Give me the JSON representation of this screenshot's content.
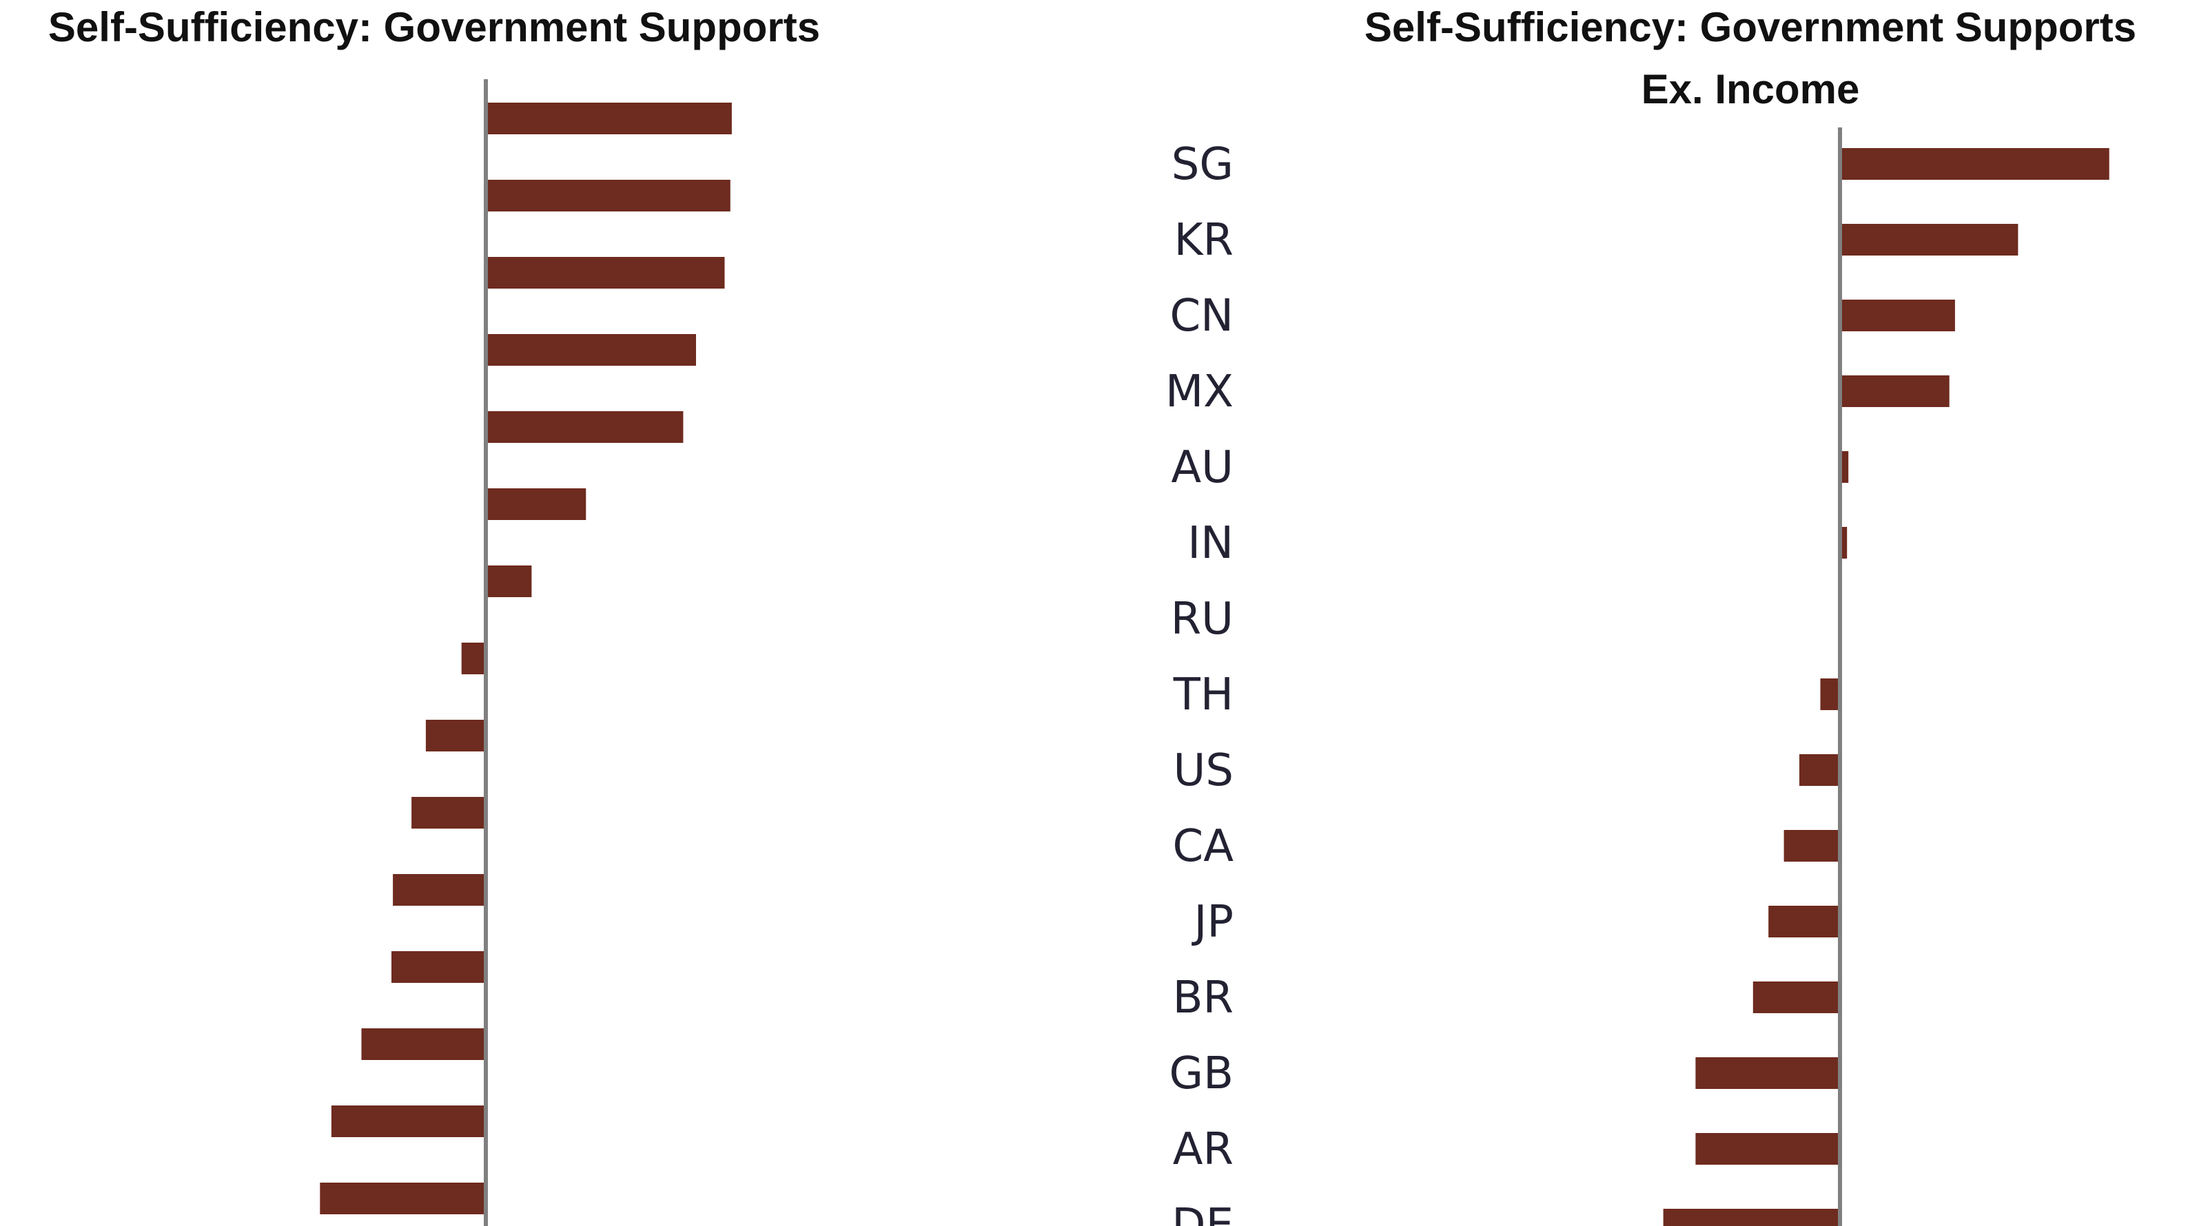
{
  "chart_data": [
    {
      "type": "bar",
      "orientation": "horizontal",
      "title": "Self-Sufficiency: Government Supports",
      "categories": [
        "SG",
        "KR",
        "CN",
        "MX",
        "AU",
        "IN",
        "RU",
        "TH",
        "US",
        "CA",
        "JP",
        "BR",
        "GB",
        "AR",
        "DE"
      ],
      "values": [
        8.6,
        8.55,
        8.35,
        7.35,
        6.9,
        3.5,
        1.6,
        -0.85,
        -2.1,
        -2.6,
        -3.25,
        -3.3,
        -4.35,
        -5.4,
        -5.8
      ],
      "xlim": [
        -6,
        10
      ],
      "grid": false,
      "color": "#6e2b1f",
      "axis_color": "#808080"
    },
    {
      "type": "bar",
      "orientation": "horizontal",
      "title": "Self-Sufficiency: Government Supports",
      "subtitle": "Ex. Income",
      "categories": [
        "SG",
        "KR",
        "CN",
        "MX",
        "AU",
        "IN",
        "RU",
        "TH",
        "US",
        "CA",
        "JP",
        "BR",
        "GB",
        "AR",
        "DE"
      ],
      "values": [
        9.6,
        6.35,
        4.1,
        3.9,
        0.3,
        0.25,
        -0.05,
        -0.7,
        -1.45,
        -2.0,
        -2.55,
        -3.1,
        -5.15,
        -5.15,
        -6.3
      ],
      "xlim": [
        -7,
        10
      ],
      "grid": false,
      "color": "#6e2b1f",
      "axis_color": "#808080"
    }
  ]
}
